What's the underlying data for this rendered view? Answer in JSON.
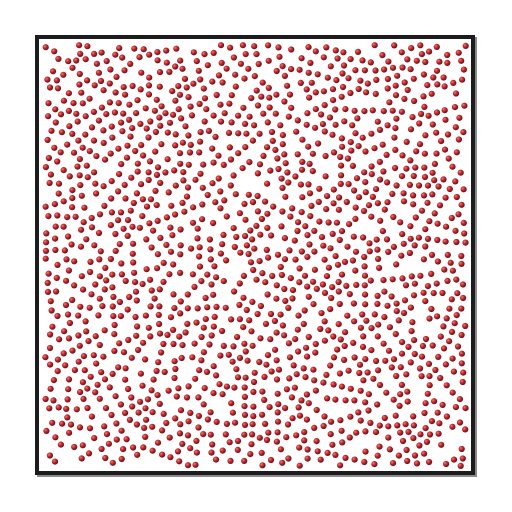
{
  "figure": {
    "background_color": "#ffffff",
    "frame_color": "#1c1c1c",
    "frame_shadow_color": "#8a8a8a",
    "particle_color": "#c0272d",
    "particle_highlight_color": "#f07c7c",
    "particle_shade_color": "#5a0d10",
    "particle_count_approx": 1500
  }
}
